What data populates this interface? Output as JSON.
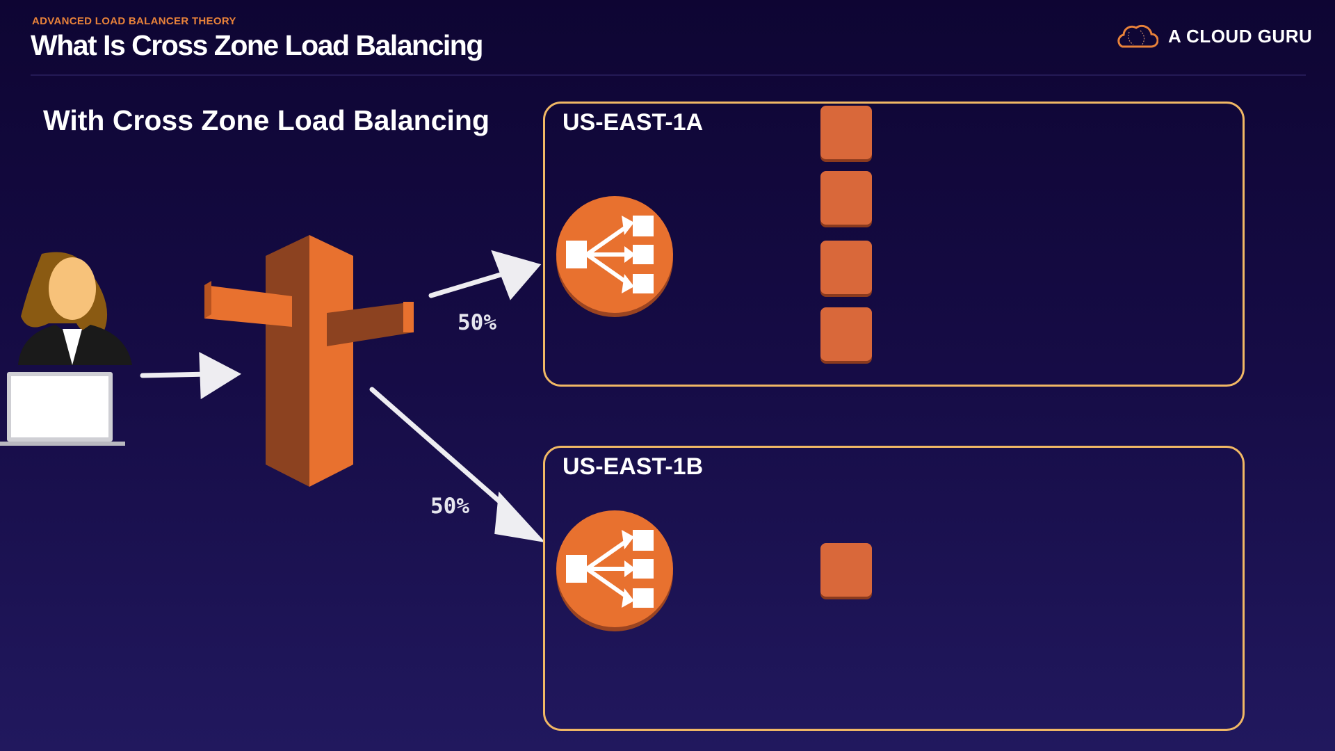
{
  "header": {
    "kicker": "ADVANCED LOAD BALANCER THEORY",
    "title": "What Is Cross Zone Load Balancing",
    "logo_text": "A CLOUD GURU"
  },
  "slide": {
    "heading": "With Cross Zone Load Balancing"
  },
  "zones": [
    {
      "label": "US-EAST-1A",
      "instances": 4
    },
    {
      "label": "US-EAST-1B",
      "instances": 1
    }
  ],
  "traffic": {
    "to_zone_a": "50%",
    "to_zone_b": "50%"
  },
  "colors": {
    "accent": "#e8712f",
    "zone_border": "#f1b865",
    "instance": "#d9683a",
    "background": "#160c46"
  }
}
